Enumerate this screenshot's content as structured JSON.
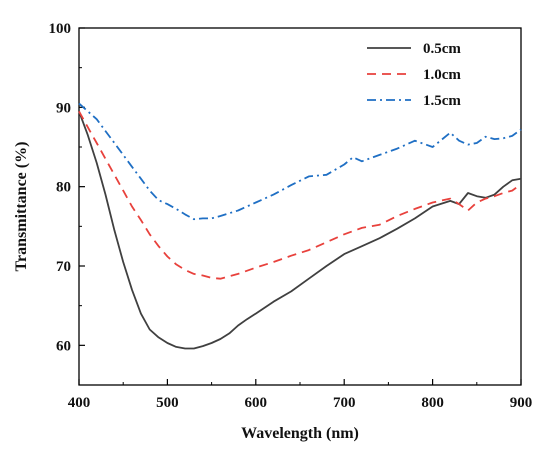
{
  "chart_data": {
    "type": "line",
    "title": "",
    "xlabel": "Wavelength (nm)",
    "ylabel": "Transmittance (%)",
    "xlim": [
      400,
      900
    ],
    "ylim": [
      55,
      100
    ],
    "xticks": [
      400,
      500,
      600,
      700,
      800,
      900
    ],
    "yticks": [
      60,
      70,
      80,
      90,
      100
    ],
    "grid": false,
    "legend_position": "top-right",
    "series": [
      {
        "name": "0.5cm",
        "color": "#404040",
        "style": "solid",
        "x": [
          400,
          410,
          420,
          430,
          440,
          450,
          460,
          470,
          480,
          490,
          500,
          510,
          520,
          530,
          540,
          550,
          560,
          570,
          580,
          590,
          600,
          620,
          640,
          660,
          680,
          700,
          720,
          740,
          760,
          780,
          800,
          820,
          830,
          840,
          850,
          860,
          870,
          880,
          890,
          900
        ],
        "y": [
          89.5,
          86.5,
          83.0,
          79.0,
          74.5,
          70.5,
          67.0,
          64.0,
          62.0,
          61.0,
          60.3,
          59.8,
          59.6,
          59.6,
          59.9,
          60.3,
          60.8,
          61.5,
          62.5,
          63.3,
          64.0,
          65.5,
          66.8,
          68.4,
          70.0,
          71.5,
          72.5,
          73.5,
          74.7,
          76.0,
          77.5,
          78.2,
          77.8,
          79.2,
          78.8,
          78.6,
          79.0,
          80.0,
          80.8,
          81.0
        ]
      },
      {
        "name": "1.0cm",
        "color": "#e8413c",
        "style": "dashed",
        "x": [
          400,
          410,
          420,
          430,
          440,
          450,
          460,
          470,
          480,
          490,
          500,
          510,
          520,
          530,
          540,
          550,
          560,
          580,
          600,
          620,
          640,
          660,
          680,
          700,
          720,
          740,
          760,
          780,
          800,
          820,
          830,
          840,
          850,
          860,
          870,
          880,
          890,
          900
        ],
        "y": [
          89.5,
          87.5,
          85.5,
          83.5,
          81.5,
          79.5,
          77.5,
          75.8,
          74.0,
          72.5,
          71.2,
          70.2,
          69.5,
          69.0,
          68.8,
          68.5,
          68.4,
          69.0,
          69.8,
          70.5,
          71.3,
          72.0,
          73.0,
          74.0,
          74.8,
          75.2,
          76.3,
          77.2,
          78.0,
          78.5,
          77.8,
          77.0,
          78.0,
          78.5,
          78.8,
          79.2,
          79.5,
          80.3
        ]
      },
      {
        "name": "1.5cm",
        "color": "#1f6fc4",
        "style": "dash-dot",
        "x": [
          400,
          410,
          420,
          430,
          440,
          450,
          460,
          470,
          480,
          490,
          500,
          510,
          520,
          530,
          540,
          550,
          560,
          580,
          600,
          620,
          640,
          660,
          680,
          700,
          710,
          720,
          740,
          760,
          780,
          800,
          820,
          830,
          840,
          850,
          860,
          870,
          880,
          890,
          900
        ],
        "y": [
          90.5,
          89.5,
          88.5,
          87.0,
          85.5,
          84.0,
          82.5,
          81.0,
          79.5,
          78.3,
          77.8,
          77.2,
          76.5,
          75.9,
          76.0,
          76.0,
          76.3,
          77.0,
          78.0,
          79.0,
          80.2,
          81.3,
          81.5,
          82.8,
          83.7,
          83.2,
          84.0,
          84.8,
          85.8,
          85.0,
          86.8,
          85.8,
          85.3,
          85.5,
          86.3,
          86.0,
          86.1,
          86.4,
          87.2
        ]
      }
    ]
  }
}
